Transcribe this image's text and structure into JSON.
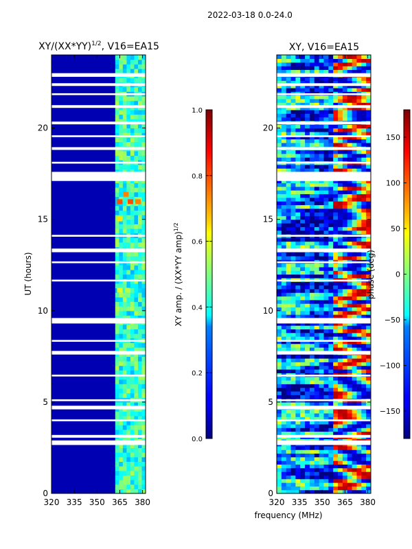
{
  "chart_data": [
    {
      "type": "heatmap",
      "suptitle": "2022-03-18 0.0-24.0",
      "title": "XY/(XX*YY)",
      "title_exponent": "1/2",
      "title_suffix": ", V16=EA15",
      "xlabel": "",
      "ylabel": "UT (hours)",
      "xlim": [
        320,
        382
      ],
      "ylim": [
        0,
        24
      ],
      "xticks": [
        320,
        335,
        350,
        365,
        380
      ],
      "yticks": [
        0,
        5,
        10,
        15,
        20
      ],
      "colormap": "jet",
      "colorbar": {
        "label": "XY amp. / (XX*YY amp)",
        "label_exponent": "1/2",
        "range": [
          0.0,
          1.0
        ],
        "ticks": [
          "0.0",
          "0.2",
          "0.4",
          "0.6",
          "0.8",
          "1.0"
        ]
      },
      "features": {
        "background_value": 0.05,
        "active_band_mhz": [
          362,
          382
        ],
        "active_band_values": [
          0.3,
          0.55
        ],
        "hot_spots": [
          {
            "x": 365,
            "ut": 15.95,
            "value": 0.8
          },
          {
            "x": 372,
            "ut": 15.95,
            "value": 0.8
          },
          {
            "x": 377,
            "ut": 15.95,
            "value": 0.75
          },
          {
            "x": 369,
            "ut": 16.35,
            "value": 0.75
          },
          {
            "x": 365,
            "ut": 15.0,
            "value": 0.65
          },
          {
            "x": 365,
            "ut": 11.1,
            "value": 0.6
          },
          {
            "x": 370,
            "ut": 11.1,
            "value": 0.55
          }
        ]
      }
    },
    {
      "type": "heatmap",
      "title": "XY, V16=EA15",
      "xlabel": "frequency (MHz)",
      "ylabel": "",
      "xlim": [
        320,
        382
      ],
      "ylim": [
        0,
        24
      ],
      "xticks": [
        320,
        335,
        350,
        365,
        380
      ],
      "yticks": [
        0,
        5,
        10,
        15,
        20
      ],
      "colormap": "jet",
      "colorbar": {
        "label": "phase (deg)",
        "range": [
          -180,
          180
        ],
        "ticks": [
          "150",
          "100",
          "50",
          "0",
          "−50",
          "−100",
          "−150"
        ],
        "tick_values": [
          150,
          100,
          50,
          0,
          -50,
          -100,
          -150
        ]
      }
    }
  ],
  "flag_gaps_ut": [
    [
      2.65,
      2.9
    ],
    [
      3.05,
      3.2
    ],
    [
      3.95,
      4.05
    ],
    [
      4.6,
      4.8
    ],
    [
      5.05,
      5.15
    ],
    [
      6.4,
      6.5
    ],
    [
      7.6,
      7.8
    ],
    [
      8.3,
      8.4
    ],
    [
      9.3,
      9.6
    ],
    [
      11.6,
      11.7
    ],
    [
      12.6,
      12.7
    ],
    [
      13.2,
      13.4
    ],
    [
      14.05,
      14.15
    ],
    [
      17.1,
      17.6
    ],
    [
      18.05,
      18.15
    ],
    [
      18.8,
      18.95
    ],
    [
      19.5,
      19.6
    ],
    [
      20.2,
      20.35
    ],
    [
      21.1,
      21.25
    ],
    [
      21.8,
      21.9
    ],
    [
      22.3,
      22.45
    ],
    [
      22.8,
      23.0
    ]
  ]
}
